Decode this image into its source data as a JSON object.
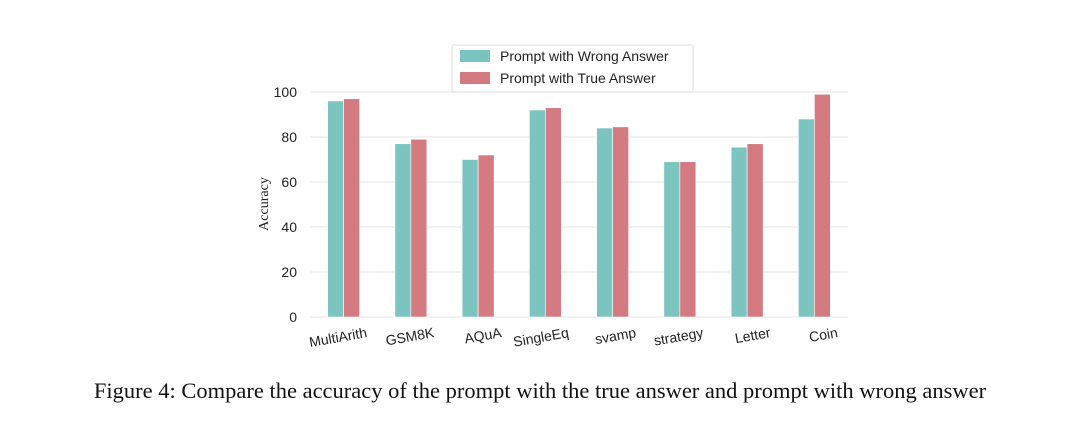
{
  "caption": "Figure 4: Compare the accuracy of the prompt with the true answer and prompt with wrong answer",
  "colors": {
    "wrong": "#7cc4bf",
    "true": "#d47a81",
    "grid": "#e6e6e6"
  },
  "chart_data": {
    "type": "bar",
    "categories": [
      "MultiArith",
      "GSM8K",
      "AQuA",
      "SingleEq",
      "svamp",
      "strategy",
      "Letter",
      "Coin"
    ],
    "series": [
      {
        "name": "Prompt with Wrong Answer",
        "values": [
          96,
          77,
          70,
          92,
          84,
          69,
          75.5,
          88
        ]
      },
      {
        "name": "Prompt with True Answer",
        "values": [
          97,
          79,
          72,
          93,
          84.5,
          69,
          77,
          99
        ]
      }
    ],
    "ylabel": "Accuracy",
    "xlabel": "",
    "ylim": [
      0,
      100
    ],
    "yticks": [
      0,
      20,
      40,
      60,
      80,
      100
    ],
    "grid": true,
    "legend_position": "top"
  }
}
